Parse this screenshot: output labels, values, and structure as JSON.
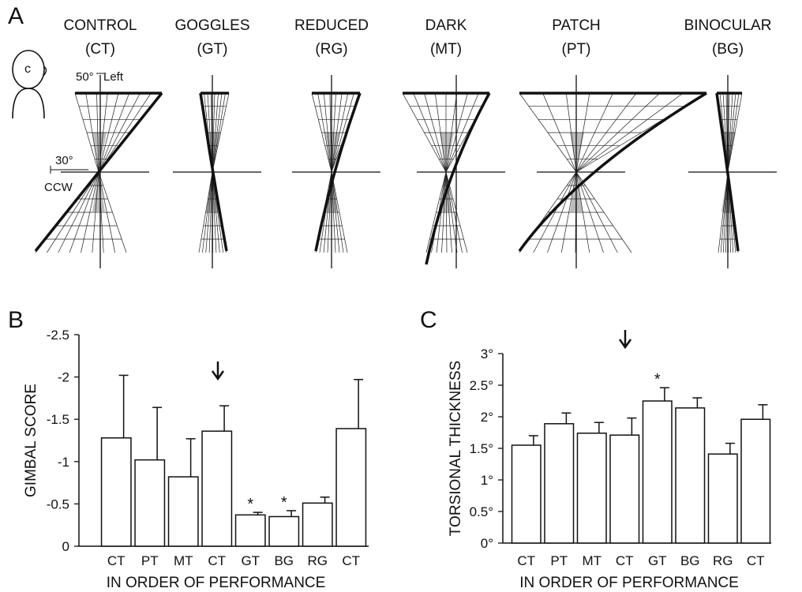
{
  "panel_a": {
    "letter": "A",
    "conditions": [
      {
        "name": "CONTROL",
        "code": "(CT)"
      },
      {
        "name": "GOGGLES",
        "code": "(GT)"
      },
      {
        "name": "REDUCED",
        "code": "(RG)"
      },
      {
        "name": "DARK",
        "code": "(MT)"
      },
      {
        "name": "PATCH",
        "code": "(PT)"
      },
      {
        "name": "BINOCULAR",
        "code": "(BG)"
      }
    ],
    "head_label": "c",
    "scale_vertical": "50°",
    "scale_vertical_dir": "Left",
    "scale_horizontal": "30°",
    "scale_horizontal_dir": "CCW"
  },
  "chart_data": [
    {
      "type": "bar",
      "letter": "B",
      "y_label": "GIMBAL SCORE",
      "x_label": "IN ORDER OF PERFORMANCE",
      "categories": [
        "CT",
        "PT",
        "MT",
        "CT",
        "GT",
        "BG",
        "RG",
        "CT"
      ],
      "values": [
        -1.28,
        -1.02,
        -0.82,
        -1.36,
        -0.37,
        -0.35,
        -0.51,
        -1.39
      ],
      "errors": [
        0.74,
        0.62,
        0.45,
        0.3,
        0.03,
        0.07,
        0.07,
        0.58
      ],
      "color": "#ffffff",
      "ylim": [
        0,
        -2.5
      ],
      "yticks": [
        0,
        -0.5,
        -1,
        -1.5,
        -2,
        -2.5
      ],
      "annotations": [
        {
          "text": "*",
          "category": "GT"
        },
        {
          "text": "*",
          "category": "BG"
        }
      ]
    },
    {
      "type": "bar",
      "letter": "C",
      "y_label": "TORSIONAL THICKNESS",
      "x_label": "IN ORDER OF PERFORMANCE",
      "categories": [
        "CT",
        "PT",
        "MT",
        "CT",
        "GT",
        "BG",
        "RG",
        "CT"
      ],
      "values": [
        1.55,
        1.89,
        1.74,
        1.71,
        2.25,
        2.14,
        1.41,
        1.96
      ],
      "errors": [
        0.15,
        0.17,
        0.17,
        0.27,
        0.21,
        0.16,
        0.17,
        0.23
      ],
      "color": "#ffffff",
      "ylim": [
        0,
        3
      ],
      "yticks": [
        {
          "value": 0,
          "label": "0°"
        },
        {
          "value": 0.5,
          "label": "0.5°"
        },
        {
          "value": 1,
          "label": "1°"
        },
        {
          "value": 1.5,
          "label": "1.5°"
        },
        {
          "value": 2,
          "label": "2°"
        },
        {
          "value": 2.5,
          "label": "2.5°"
        },
        {
          "value": 3,
          "label": "3°"
        }
      ],
      "annotations": [
        {
          "text": "*",
          "category": "GT"
        }
      ]
    }
  ]
}
